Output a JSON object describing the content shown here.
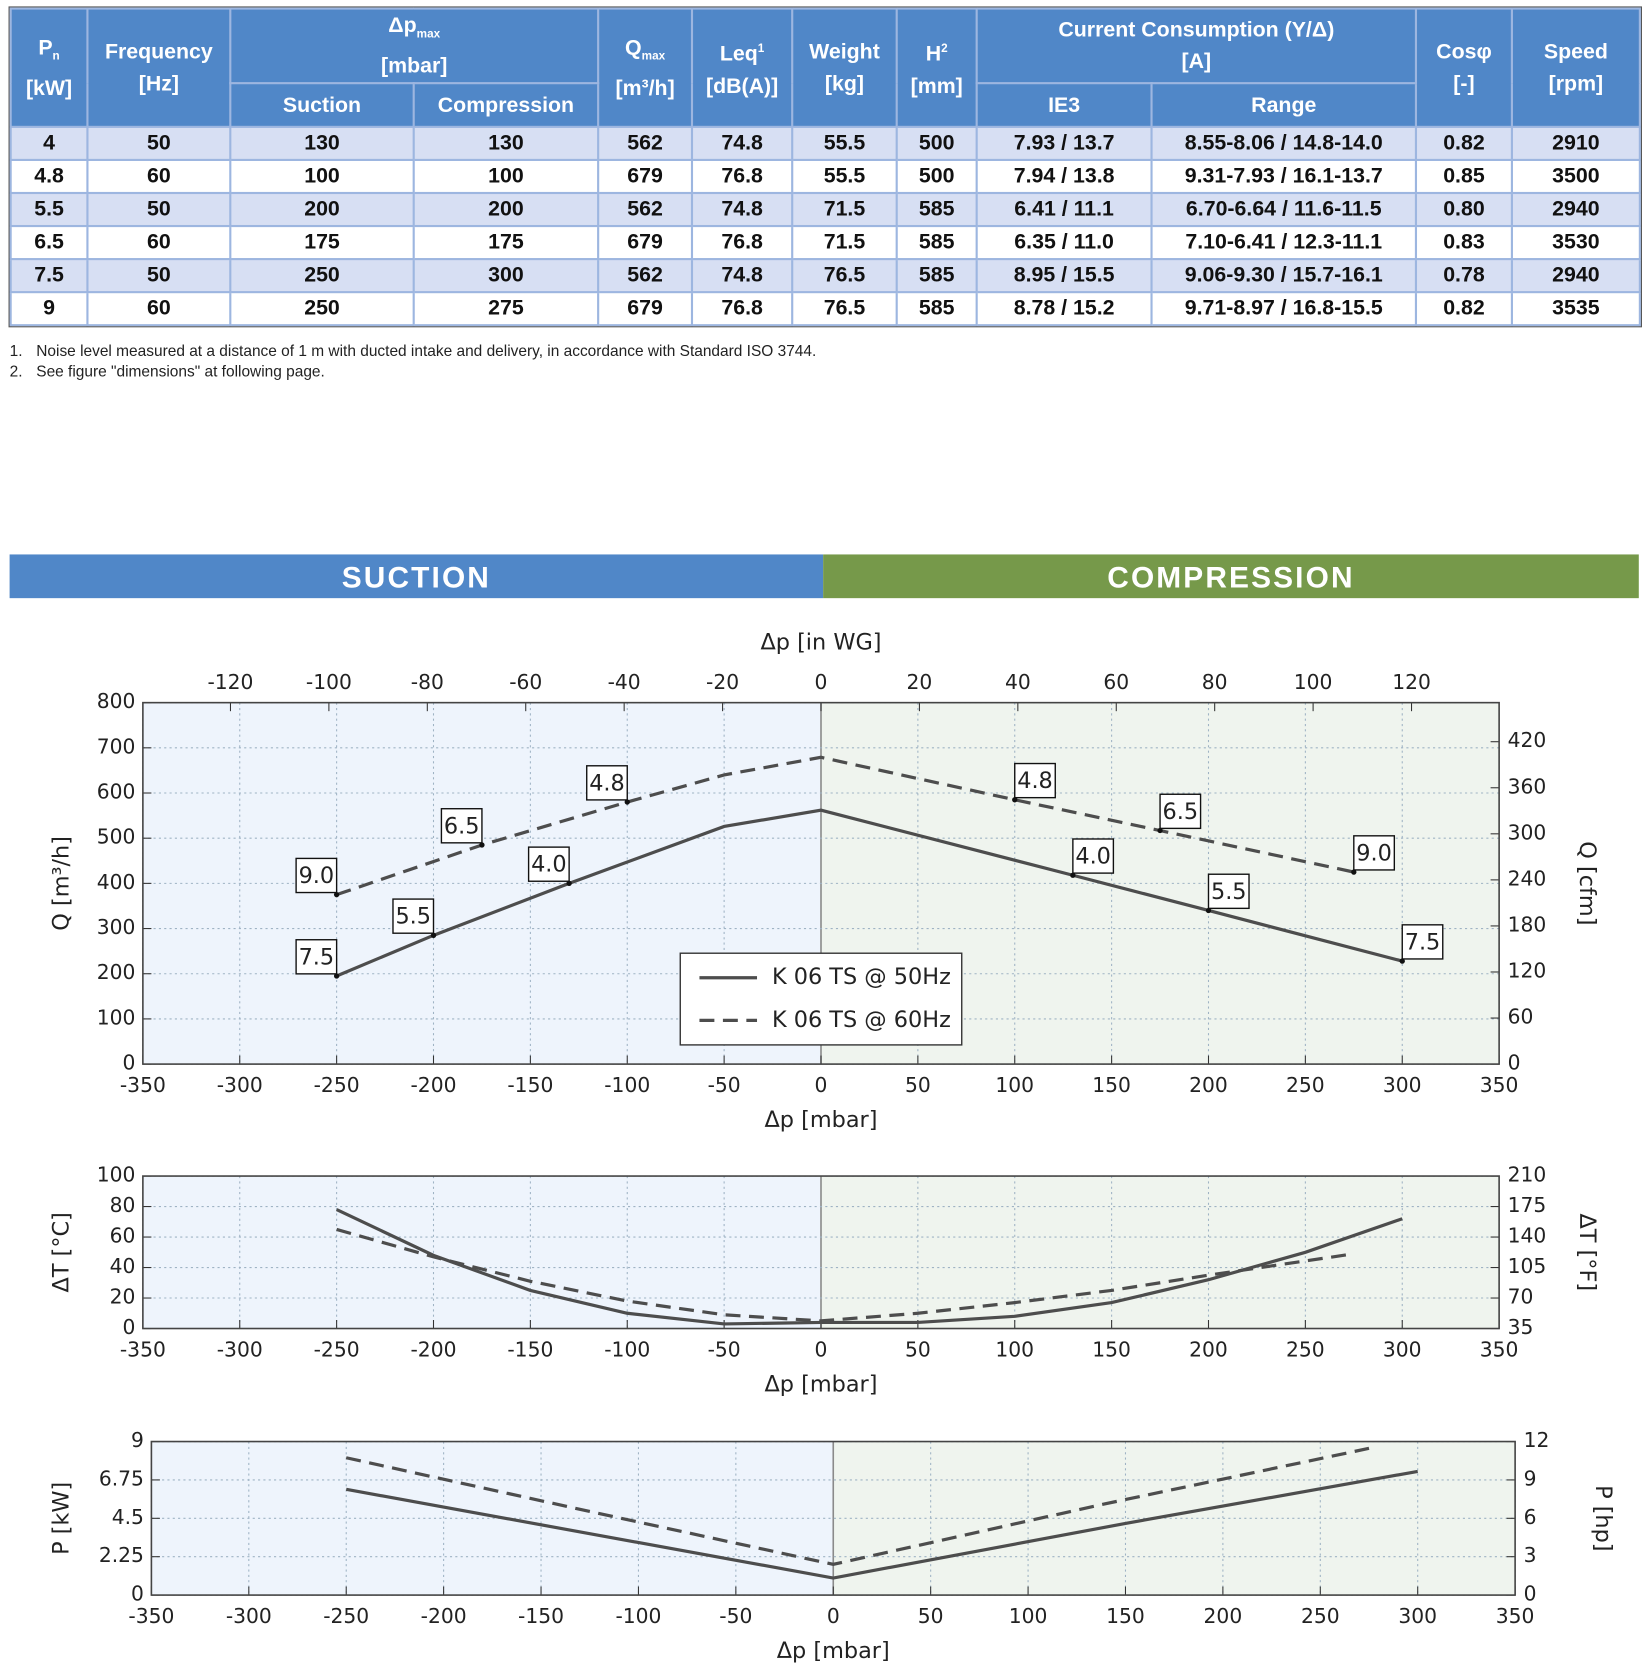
{
  "table": {
    "header": [
      {
        "main": "P",
        "sub": "n",
        "unit": "[kW]"
      },
      {
        "main": "Frequency",
        "unit": "[Hz]"
      },
      {
        "main": "Δp",
        "sub": "max",
        "unit": "[mbar]",
        "children": [
          "Suction",
          "Compression"
        ]
      },
      {
        "main": "Q",
        "sub": "max",
        "unit": "[m³/h]"
      },
      {
        "main": "Leq",
        "sup": "1",
        "unit": "[dB(A)]"
      },
      {
        "main": "Weight",
        "unit": "[kg]"
      },
      {
        "main": "H",
        "sup": "2",
        "unit": "[mm]"
      },
      {
        "main": "Current Consumption (Y/Δ)",
        "unit": "[A]",
        "children": [
          "IE3",
          "Range"
        ]
      },
      {
        "main": "Cosφ",
        "unit": "[-]"
      },
      {
        "main": "Speed",
        "unit": "[rpm]"
      }
    ],
    "rows": [
      [
        "4",
        "50",
        "130",
        "130",
        "562",
        "74.8",
        "55.5",
        "500",
        "7.93 / 13.7",
        "8.55-8.06 / 14.8-14.0",
        "0.82",
        "2910"
      ],
      [
        "4.8",
        "60",
        "100",
        "100",
        "679",
        "76.8",
        "55.5",
        "500",
        "7.94 / 13.8",
        "9.31-7.93 / 16.1-13.7",
        "0.85",
        "3500"
      ],
      [
        "5.5",
        "50",
        "200",
        "200",
        "562",
        "74.8",
        "71.5",
        "585",
        "6.41 / 11.1",
        "6.70-6.64 / 11.6-11.5",
        "0.80",
        "2940"
      ],
      [
        "6.5",
        "60",
        "175",
        "175",
        "679",
        "76.8",
        "71.5",
        "585",
        "6.35 / 11.0",
        "7.10-6.41 / 12.3-11.1",
        "0.83",
        "3530"
      ],
      [
        "7.5",
        "50",
        "250",
        "300",
        "562",
        "74.8",
        "76.5",
        "585",
        "8.95 / 15.5",
        "9.06-9.30 / 15.7-16.1",
        "0.78",
        "2940"
      ],
      [
        "9",
        "60",
        "250",
        "275",
        "679",
        "76.8",
        "76.5",
        "585",
        "8.78 / 15.2",
        "9.71-8.97 / 16.8-15.5",
        "0.82",
        "3535"
      ]
    ]
  },
  "footnotes": [
    {
      "num": "1.",
      "text": "Noise level measured at a distance of 1 m with ducted intake and delivery, in accordance with Standard ISO 3744."
    },
    {
      "num": "2.",
      "text": "See figure \"dimensions\" at following page."
    }
  ],
  "banner": {
    "left": "SUCTION",
    "right": "COMPRESSION"
  },
  "chart_data": [
    {
      "type": "line",
      "xlabel": "Δp [mbar]",
      "x2label": "Δp [in WG]",
      "ylabel": "Q [m³/h]",
      "y2label": "Q [cfm]",
      "xlim": [
        -350,
        350
      ],
      "xticks": [
        -350,
        -300,
        -250,
        -200,
        -150,
        -100,
        -50,
        0,
        50,
        100,
        150,
        200,
        250,
        300,
        350
      ],
      "x2lim": [
        -137.8,
        137.8
      ],
      "x2ticks": [
        -120,
        -100,
        -80,
        -60,
        -40,
        -20,
        0,
        20,
        40,
        60,
        80,
        100,
        120
      ],
      "ylim": [
        0,
        800
      ],
      "yticks": [
        0,
        100,
        200,
        300,
        400,
        500,
        600,
        700,
        800
      ],
      "y2lim": [
        0,
        470.9
      ],
      "y2ticks": [
        0,
        60,
        120,
        180,
        240,
        300,
        360,
        420
      ],
      "grid": true,
      "legend": "lower center",
      "series": [
        {
          "name": "K 06 TS @ 50Hz",
          "color": "#4d4d4d",
          "line_style": "solid",
          "x": [
            -250,
            -200,
            -130,
            -50,
            0,
            130,
            200,
            300
          ],
          "values": [
            195,
            285,
            400,
            526,
            562,
            418,
            340,
            228
          ],
          "point_labels": [
            "7.5",
            "5.5",
            "4.0",
            null,
            null,
            "4.0",
            "5.5",
            "7.5"
          ]
        },
        {
          "name": "K 06 TS @ 60Hz",
          "color": "#4d4d4d",
          "line_style": "dashed",
          "x": [
            -250,
            -175,
            -100,
            -50,
            0,
            100,
            175,
            275
          ],
          "values": [
            375,
            485,
            580,
            640,
            679,
            585,
            517,
            425
          ],
          "point_labels": [
            "9.0",
            "6.5",
            "4.8",
            null,
            null,
            "4.8",
            "6.5",
            "9.0"
          ]
        }
      ]
    },
    {
      "type": "line",
      "xlabel": "Δp [mbar]",
      "ylabel": "ΔT [°C]",
      "y2label": "ΔT [°F]",
      "xlim": [
        -350,
        350
      ],
      "xticks": [
        -350,
        -300,
        -250,
        -200,
        -150,
        -100,
        -50,
        0,
        50,
        100,
        150,
        200,
        250,
        300,
        350
      ],
      "ylim": [
        0,
        100
      ],
      "yticks": [
        0,
        20,
        40,
        60,
        80,
        100
      ],
      "y2lim": [
        35,
        210
      ],
      "y2ticks": [
        35,
        70,
        105,
        140,
        175,
        210
      ],
      "grid": true,
      "series": [
        {
          "color": "#4d4d4d",
          "line_style": "solid",
          "x": [
            -250,
            -200,
            -150,
            -100,
            -50,
            0,
            50,
            100,
            150,
            200,
            250,
            300
          ],
          "values": [
            78,
            48,
            25,
            10,
            3,
            4,
            4,
            8,
            17,
            32,
            50,
            72
          ]
        },
        {
          "color": "#4d4d4d",
          "line_style": "dashed",
          "x": [
            -250,
            -200,
            -150,
            -100,
            -50,
            0,
            50,
            100,
            150,
            200,
            275
          ],
          "values": [
            65,
            47,
            31,
            18,
            9,
            5,
            10,
            17,
            25,
            35,
            49
          ]
        }
      ]
    },
    {
      "type": "line",
      "xlabel": "Δp [mbar]",
      "ylabel": "P [kW]",
      "y2label": "P [hp]",
      "xlim": [
        -350,
        350
      ],
      "xticks": [
        -350,
        -300,
        -250,
        -200,
        -150,
        -100,
        -50,
        0,
        50,
        100,
        150,
        200,
        250,
        300,
        350
      ],
      "ylim": [
        0,
        9
      ],
      "yticks": [
        0,
        2.25,
        4.5,
        6.75,
        9
      ],
      "y2lim": [
        0,
        12
      ],
      "y2ticks": [
        0,
        3,
        6,
        9,
        12
      ],
      "grid": true,
      "series": [
        {
          "color": "#4d4d4d",
          "line_style": "solid",
          "x": [
            -250,
            -125,
            0,
            150,
            300
          ],
          "values": [
            6.2,
            3.6,
            1.0,
            4.2,
            7.25
          ]
        },
        {
          "color": "#4d4d4d",
          "line_style": "dashed",
          "x": [
            -250,
            -125,
            0,
            137.5,
            275
          ],
          "values": [
            8.05,
            4.9,
            1.8,
            5.3,
            8.6
          ]
        }
      ]
    }
  ]
}
